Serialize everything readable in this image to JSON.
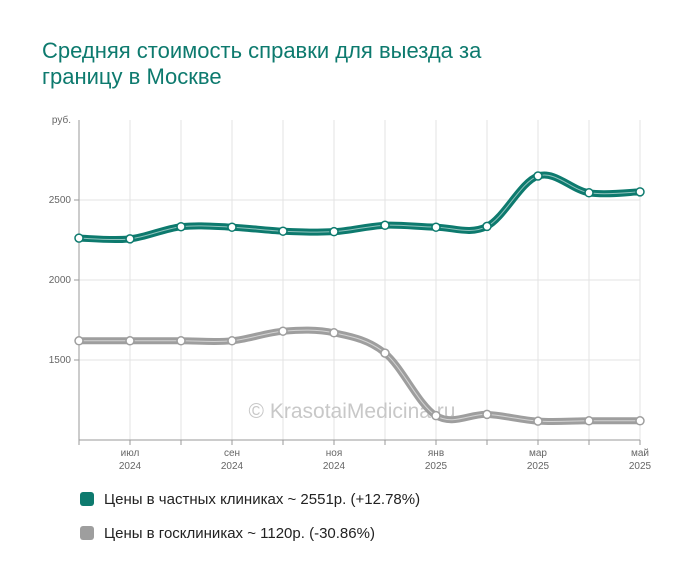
{
  "title_lines": [
    "Средняя стоимость справки для выезда за",
    "границу в Москве"
  ],
  "watermark": "© KrasotaiMedicina.ru",
  "colors": {
    "private": "#0d7a6e",
    "public": "#9e9e9e",
    "title": "#0d7a6e"
  },
  "legend": [
    {
      "label": "Цены в частных клиниках ~ 2551р. (+12.78%)",
      "color": "#0d7a6e"
    },
    {
      "label": "Цены в госклиниках ~ 1120р. (-30.86%)",
      "color": "#9e9e9e"
    }
  ],
  "chart_data": {
    "type": "line",
    "y_unit_label": "руб.",
    "ylim": [
      1000,
      3000
    ],
    "yticks": [
      1500,
      2000,
      2500
    ],
    "grid": true,
    "x_months": [
      "2024-06",
      "2024-07",
      "2024-08",
      "2024-09",
      "2024-10",
      "2024-11",
      "2024-12",
      "2025-01",
      "2025-02",
      "2025-03",
      "2025-04",
      "2025-05"
    ],
    "x_tick_labels": [
      {
        "month": "июл",
        "year": "2024",
        "index": 1
      },
      {
        "month": "сен",
        "year": "2024",
        "index": 3
      },
      {
        "month": "ноя",
        "year": "2024",
        "index": 5
      },
      {
        "month": "янв",
        "year": "2025",
        "index": 7
      },
      {
        "month": "мар",
        "year": "2025",
        "index": 9
      },
      {
        "month": "май",
        "year": "2025",
        "index": 11
      }
    ],
    "series": [
      {
        "name": "Цены в частных клиниках",
        "values": [
          2262,
          2257,
          2333,
          2330,
          2305,
          2302,
          2342,
          2330,
          2335,
          2650,
          2545,
          2551
        ]
      },
      {
        "name": "Цены в госклиниках",
        "values": [
          1620,
          1620,
          1620,
          1620,
          1680,
          1670,
          1543,
          1152,
          1160,
          1118,
          1120,
          1120
        ]
      }
    ]
  }
}
